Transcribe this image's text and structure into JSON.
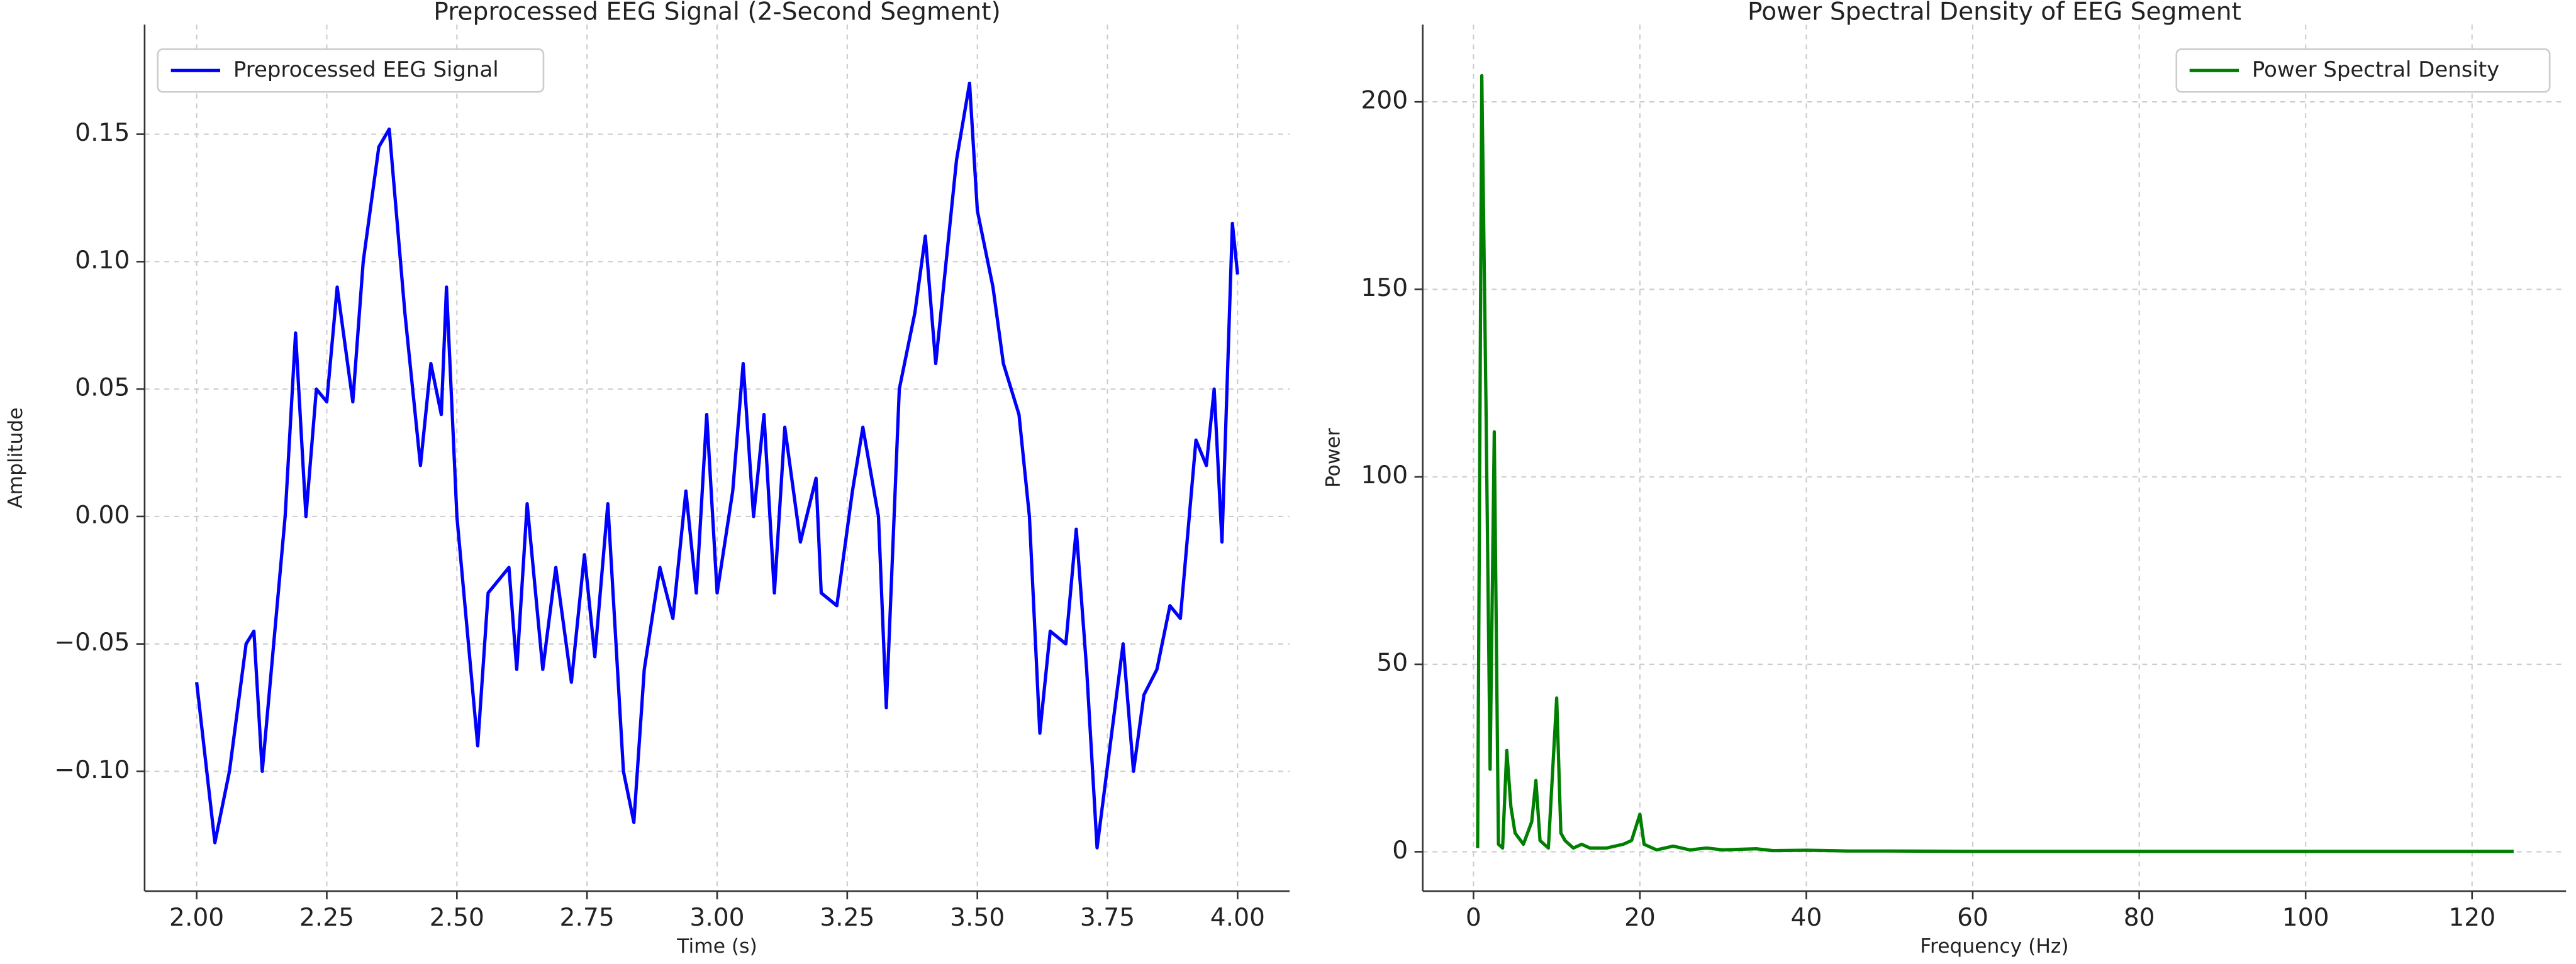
{
  "chart_data": [
    {
      "type": "line",
      "title": "Preprocessed EEG Signal (2-Second Segment)",
      "xlabel": "Time (s)",
      "ylabel": "Amplitude",
      "legend": "upper left",
      "grid": true,
      "series": [
        {
          "name": "Preprocessed EEG Signal",
          "color": "#0000ff",
          "x": [
            2.0,
            2.035,
            2.063,
            2.095,
            2.11,
            2.126,
            2.17,
            2.19,
            2.21,
            2.23,
            2.25,
            2.27,
            2.3,
            2.32,
            2.35,
            2.37,
            2.4,
            2.43,
            2.45,
            2.47,
            2.48,
            2.5,
            2.54,
            2.56,
            2.6,
            2.615,
            2.635,
            2.665,
            2.69,
            2.72,
            2.745,
            2.765,
            2.79,
            2.82,
            2.84,
            2.86,
            2.89,
            2.915,
            2.94,
            2.96,
            2.98,
            3.0,
            3.03,
            3.05,
            3.07,
            3.09,
            3.11,
            3.13,
            3.16,
            3.19,
            3.2,
            3.23,
            3.26,
            3.28,
            3.31,
            3.325,
            3.35,
            3.38,
            3.4,
            3.42,
            3.44,
            3.46,
            3.485,
            3.5,
            3.53,
            3.55,
            3.58,
            3.6,
            3.62,
            3.64,
            3.67,
            3.69,
            3.71,
            3.73,
            3.755,
            3.78,
            3.8,
            3.82,
            3.845,
            3.87,
            3.89,
            3.92,
            3.94,
            3.955,
            3.97,
            3.99,
            4.0
          ],
          "values": [
            -0.065,
            -0.128,
            -0.1,
            -0.05,
            -0.045,
            -0.1,
            0.0,
            0.072,
            0.0,
            0.05,
            0.045,
            0.09,
            0.045,
            0.1,
            0.145,
            0.152,
            0.08,
            0.02,
            0.06,
            0.04,
            0.09,
            0.0,
            -0.09,
            -0.03,
            -0.02,
            -0.06,
            0.005,
            -0.06,
            -0.02,
            -0.065,
            -0.015,
            -0.055,
            0.005,
            -0.1,
            -0.12,
            -0.06,
            -0.02,
            -0.04,
            0.01,
            -0.03,
            0.04,
            -0.03,
            0.01,
            0.06,
            0.0,
            0.04,
            -0.03,
            0.035,
            -0.01,
            0.015,
            -0.03,
            -0.035,
            0.01,
            0.035,
            0.0,
            -0.075,
            0.05,
            0.08,
            0.11,
            0.06,
            0.1,
            0.14,
            0.17,
            0.12,
            0.09,
            0.06,
            0.04,
            0.0,
            -0.085,
            -0.045,
            -0.05,
            -0.005,
            -0.06,
            -0.13,
            -0.09,
            -0.05,
            -0.1,
            -0.07,
            -0.06,
            -0.035,
            -0.04,
            0.03,
            0.02,
            0.05,
            -0.01,
            0.115,
            0.095
          ]
        }
      ],
      "xlim": [
        1.9,
        4.1
      ],
      "ylim": [
        -0.147,
        0.193
      ],
      "xticks": [
        {
          "value": 2.0,
          "label": "2.00"
        },
        {
          "value": 2.25,
          "label": "2.25"
        },
        {
          "value": 2.5,
          "label": "2.50"
        },
        {
          "value": 2.75,
          "label": "2.75"
        },
        {
          "value": 3.0,
          "label": "3.00"
        },
        {
          "value": 3.25,
          "label": "3.25"
        },
        {
          "value": 3.5,
          "label": "3.50"
        },
        {
          "value": 3.75,
          "label": "3.75"
        },
        {
          "value": 4.0,
          "label": "4.00"
        }
      ],
      "yticks": [
        {
          "value": -0.1,
          "label": "−0.10"
        },
        {
          "value": -0.05,
          "label": "−0.05"
        },
        {
          "value": 0,
          "label": "0.00"
        },
        {
          "value": 0.05,
          "label": "0.05"
        },
        {
          "value": 0.1,
          "label": "0.10"
        },
        {
          "value": 0.15,
          "label": "0.15"
        }
      ]
    },
    {
      "type": "line",
      "title": "Power Spectral Density of EEG Segment",
      "xlabel": "Frequency (Hz)",
      "ylabel": "Power",
      "legend": "upper right",
      "grid": true,
      "series": [
        {
          "name": "Power Spectral Density",
          "color": "#008000",
          "x": [
            0.5,
            1,
            1.5,
            2,
            2.5,
            3,
            3.5,
            4,
            4.5,
            5,
            6,
            7,
            7.5,
            8,
            9,
            10,
            10.5,
            11,
            12,
            13,
            14,
            16,
            18,
            19,
            20,
            20.5,
            22,
            24,
            26,
            28,
            30,
            34,
            36,
            40,
            45,
            50,
            60,
            80,
            100,
            125
          ],
          "values": [
            1,
            207,
            120,
            22,
            112,
            2,
            1,
            27,
            12,
            5,
            2,
            8,
            19,
            3,
            1,
            41,
            5,
            3,
            1,
            2,
            1,
            1,
            2,
            3,
            10,
            2,
            0.5,
            1.5,
            0.5,
            1,
            0.5,
            0.8,
            0.3,
            0.4,
            0.2,
            0.2,
            0.1,
            0.1,
            0.1,
            0.1
          ]
        }
      ],
      "xlim": [
        -6.1,
        131.3
      ],
      "ylim": [
        -10.5,
        220.6
      ],
      "xticks": [
        0,
        20,
        40,
        60,
        80,
        100,
        120
      ],
      "yticks": [
        0,
        50,
        100,
        150,
        200
      ]
    }
  ]
}
